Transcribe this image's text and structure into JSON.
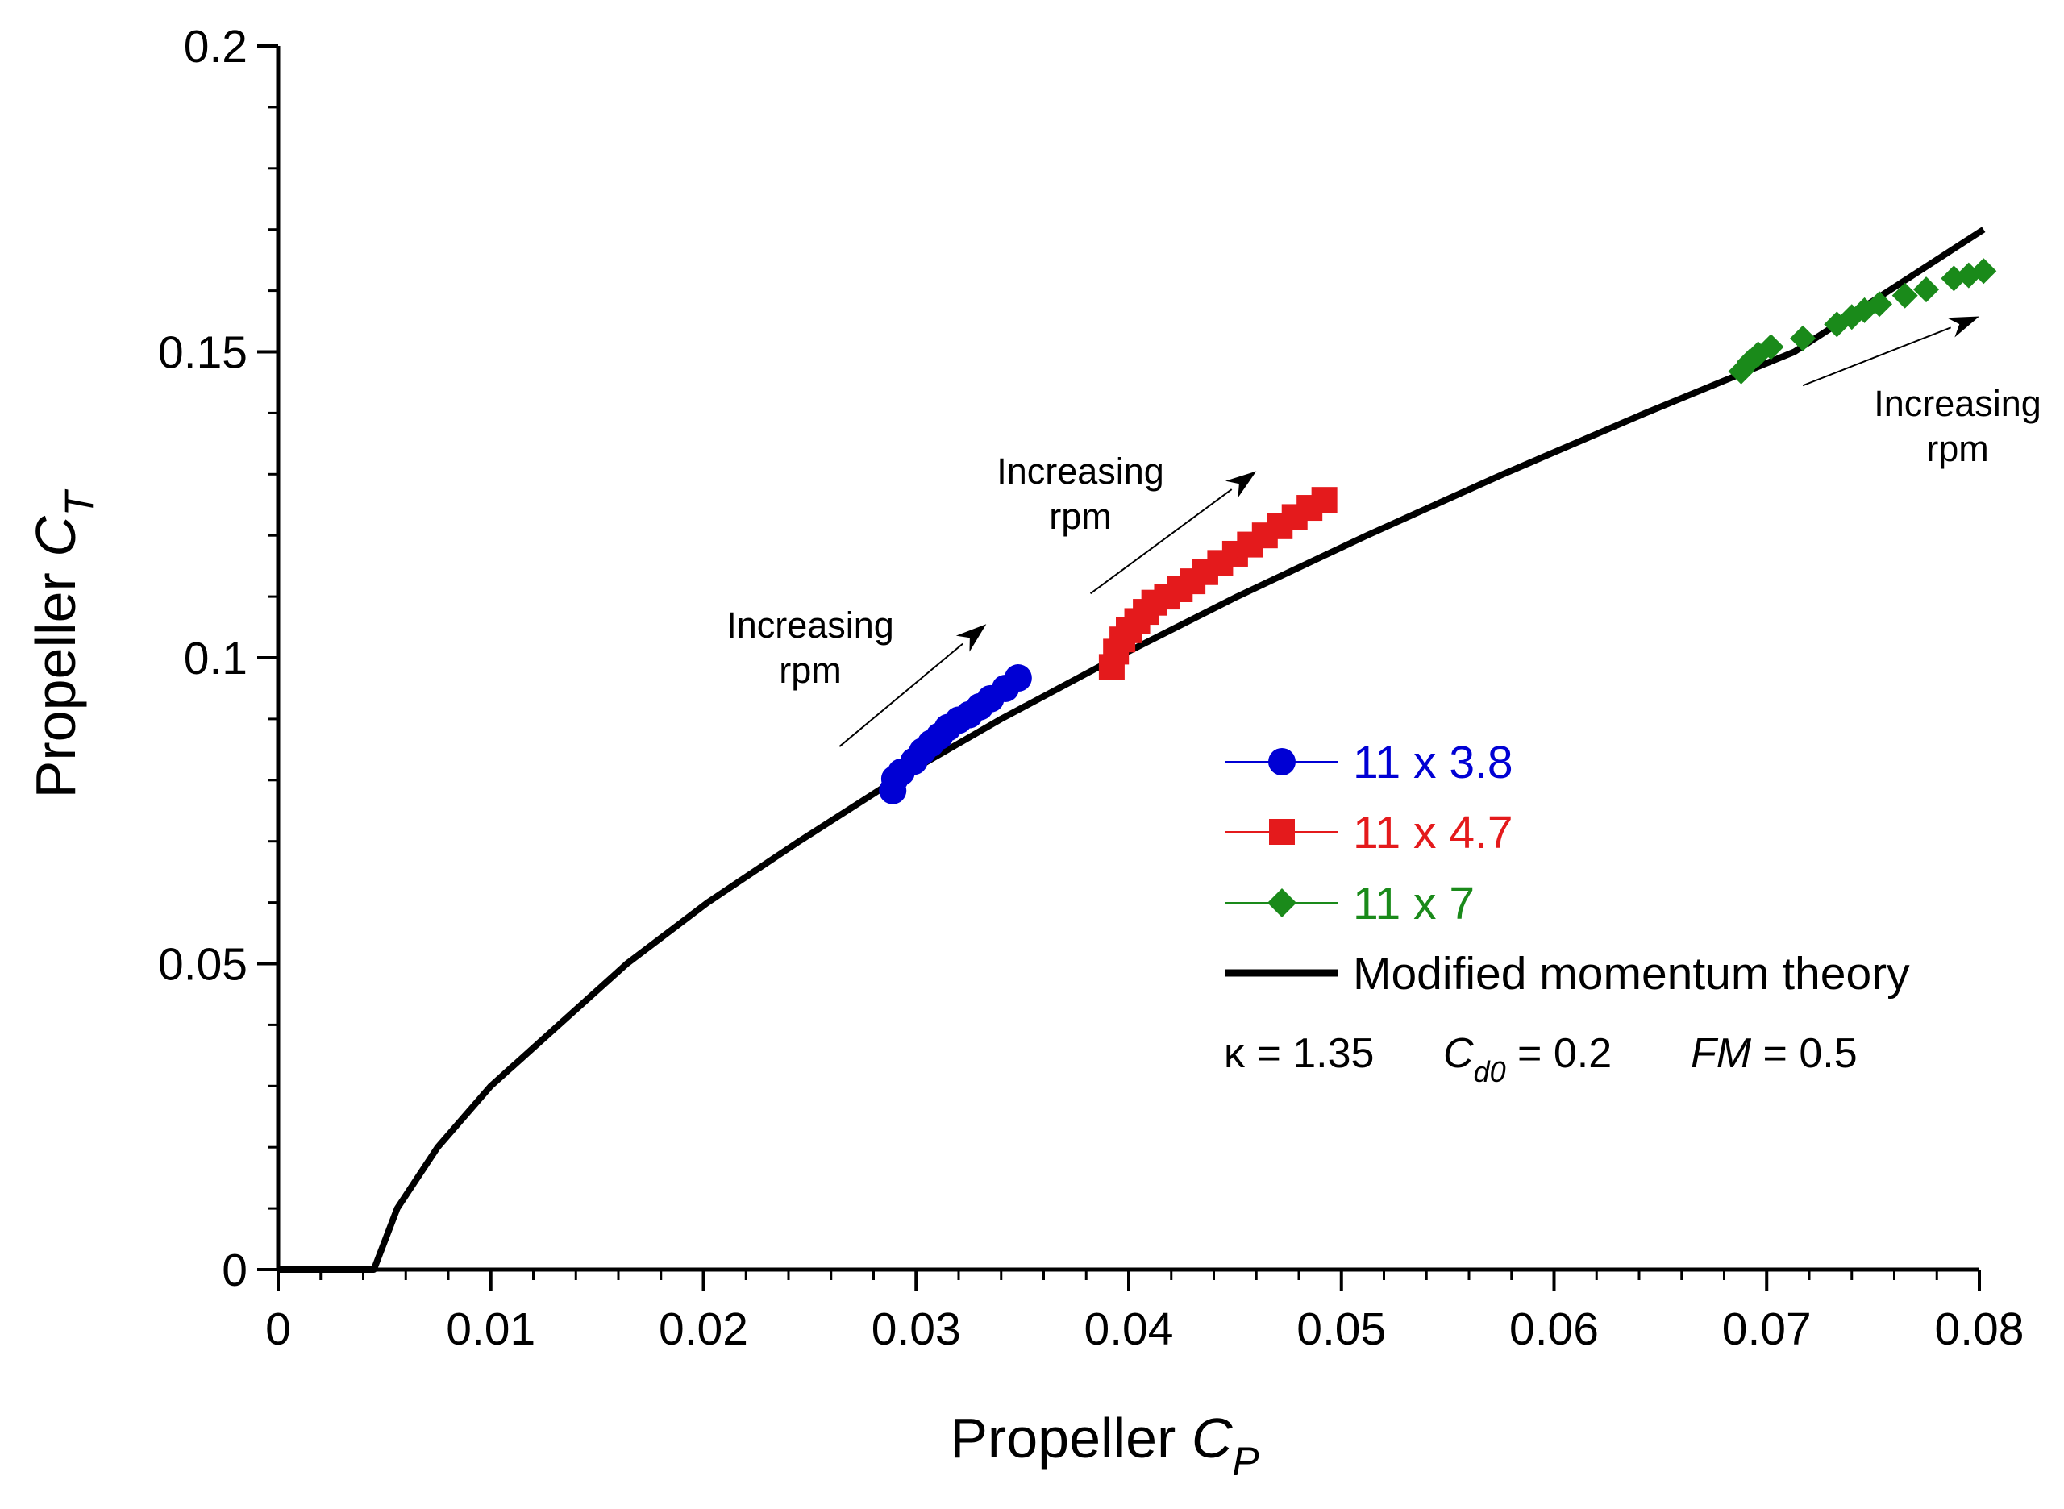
{
  "chart_data": {
    "type": "scatter",
    "xlabel": {
      "main": "Propeller ",
      "var": "C",
      "sub": "P"
    },
    "ylabel": {
      "main": "Propeller ",
      "var": "C",
      "sub": "T"
    },
    "xlim": [
      0,
      0.08
    ],
    "ylim": [
      0,
      0.2
    ],
    "x_ticks": [
      0,
      0.01,
      0.02,
      0.03,
      0.04,
      0.05,
      0.06,
      0.07,
      0.08
    ],
    "x_tick_labels": [
      "0",
      "0.01",
      "0.02",
      "0.03",
      "0.04",
      "0.05",
      "0.06",
      "0.07",
      "0.08"
    ],
    "y_ticks": [
      0,
      0.05,
      0.1,
      0.15,
      0.2
    ],
    "y_tick_labels": [
      "0",
      "0.05",
      "0.1",
      "0.15",
      "0.2"
    ],
    "grid": false,
    "legend_position": "center-right",
    "series": [
      {
        "name": "11 x 3.8",
        "marker": "circle",
        "color": "#0000d4",
        "x": [
          0.0289,
          0.029,
          0.0293,
          0.0299,
          0.0303,
          0.0307,
          0.0311,
          0.0315,
          0.032,
          0.0325,
          0.033,
          0.0335,
          0.0342,
          0.0348
        ],
        "y": [
          0.0783,
          0.0802,
          0.0813,
          0.0831,
          0.0847,
          0.086,
          0.0872,
          0.0886,
          0.0898,
          0.0907,
          0.092,
          0.0933,
          0.095,
          0.0967
        ]
      },
      {
        "name": "11 x 4.7",
        "marker": "square",
        "color": "#e41a1c",
        "x": [
          0.0392,
          0.0394,
          0.0397,
          0.04,
          0.0404,
          0.0408,
          0.0412,
          0.0418,
          0.0424,
          0.043,
          0.0436,
          0.0443,
          0.045,
          0.0457,
          0.0464,
          0.0471,
          0.0478,
          0.0485,
          0.0492
        ],
        "y": [
          0.0985,
          0.101,
          0.103,
          0.1045,
          0.106,
          0.1075,
          0.109,
          0.11,
          0.1112,
          0.1125,
          0.114,
          0.1155,
          0.117,
          0.1185,
          0.12,
          0.1215,
          0.123,
          0.1245,
          0.1258
        ]
      },
      {
        "name": "11 x 7",
        "marker": "diamond",
        "color": "#1a8a1a",
        "x": [
          0.0688,
          0.0692,
          0.0696,
          0.0702,
          0.0717,
          0.0733,
          0.074,
          0.0746,
          0.0753,
          0.0765,
          0.0775,
          0.0788,
          0.0795,
          0.0802
        ],
        "y": [
          0.1468,
          0.1484,
          0.1496,
          0.1508,
          0.1522,
          0.1545,
          0.1557,
          0.1568,
          0.1578,
          0.1592,
          0.1602,
          0.162,
          0.1625,
          0.1632
        ]
      },
      {
        "name": "Modified momentum theory",
        "type": "line",
        "color": "#000000",
        "x": [
          0.0,
          0.0045,
          0.0056,
          0.0075,
          0.01,
          0.0132,
          0.0164,
          0.0202,
          0.0245,
          0.029,
          0.034,
          0.0394,
          0.0451,
          0.0512,
          0.0576,
          0.0643,
          0.0713,
          0.0802
        ],
        "y": [
          0.0,
          0.0,
          0.01,
          0.02,
          0.03,
          0.04,
          0.05,
          0.06,
          0.07,
          0.08,
          0.09,
          0.1,
          0.11,
          0.12,
          0.13,
          0.14,
          0.15,
          0.17
        ]
      }
    ],
    "annotations": [
      {
        "lines": [
          "Increasing",
          "rpm"
        ],
        "arrow_from": [
          0.0264,
          0.0855
        ],
        "arrow_to": [
          0.0333,
          0.1055
        ]
      },
      {
        "lines": [
          "Increasing",
          "rpm"
        ],
        "arrow_from": [
          0.0382,
          0.1105
        ],
        "arrow_to": [
          0.046,
          0.1305
        ]
      },
      {
        "lines": [
          "Increasing",
          "rpm"
        ],
        "arrow_from": [
          0.0717,
          0.1445
        ],
        "arrow_to": [
          0.08,
          0.1558
        ]
      }
    ],
    "parameters": {
      "kappa": {
        "symbol": "κ",
        "text": " = 1.35"
      },
      "cd0": {
        "var": "C",
        "sub": "d0",
        "text": " = 0.2"
      },
      "fm": {
        "var": "FM",
        "text": " = 0.5"
      }
    }
  }
}
